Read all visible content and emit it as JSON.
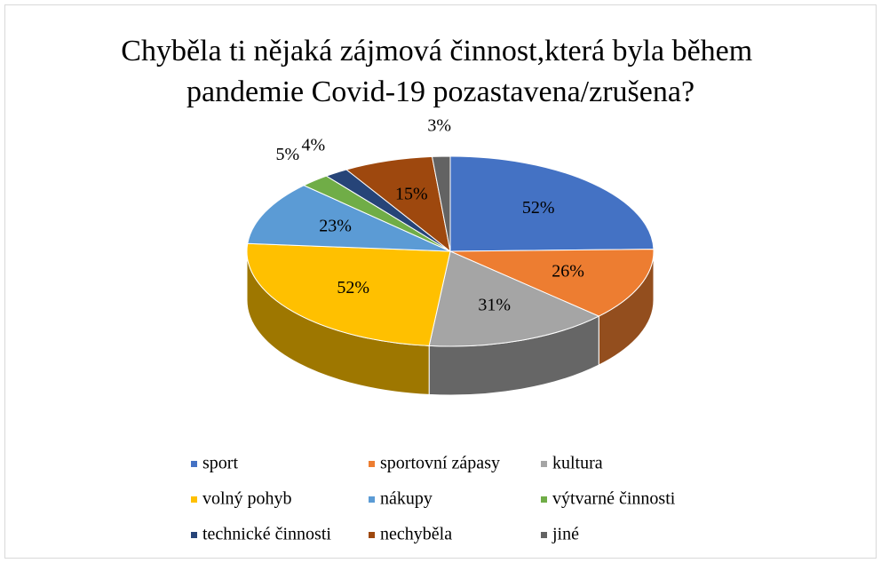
{
  "chart_data": {
    "type": "pie",
    "title": "Chyběla ti nějaká zájmová činnost,která byla během pandemie Covid-19 pozastavena/zrušena?",
    "categories": [
      "sport",
      "sportovní zápasy",
      "kultura",
      "volný pohyb",
      "nákupy",
      "výtvarné činnosti",
      "technické činnosti",
      "nechyběla",
      "jiné"
    ],
    "values": [
      52,
      26,
      31,
      52,
      23,
      5,
      4,
      15,
      3
    ],
    "value_labels": [
      "52%",
      "26%",
      "31%",
      "52%",
      "23%",
      "5%",
      "4%",
      "15%",
      "3%"
    ],
    "colors": [
      "#4472c4",
      "#ed7d31",
      "#a5a5a5",
      "#ffc000",
      "#5b9bd5",
      "#70ad47",
      "#264478",
      "#9e480e",
      "#636363"
    ],
    "legend": "bottom"
  }
}
